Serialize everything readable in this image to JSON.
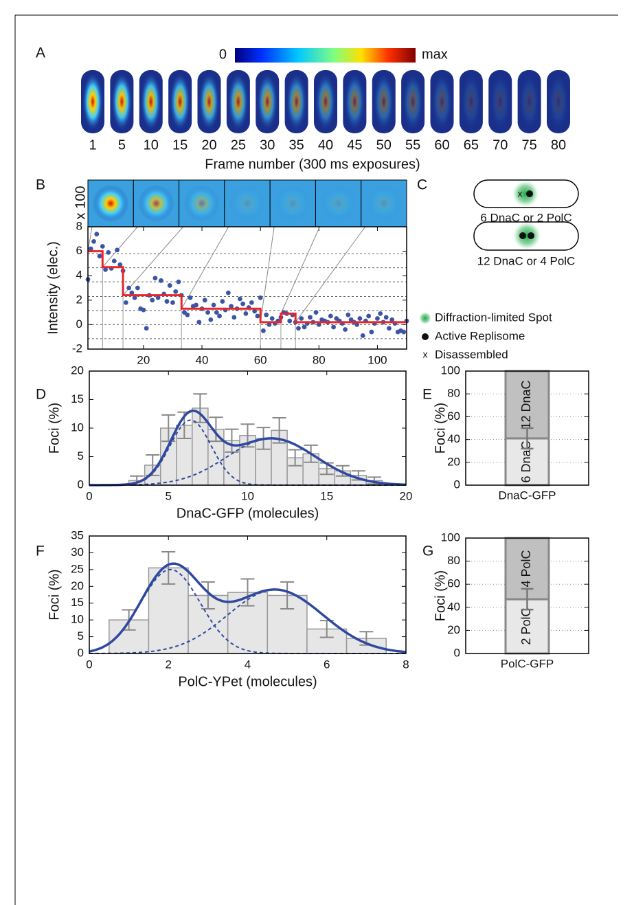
{
  "panels": [
    "A",
    "B",
    "C",
    "D",
    "E",
    "F",
    "G"
  ],
  "diagram": {
    "cells": [
      "6 DnaC or 2 PolC",
      "12 DnaC or 4 PolC"
    ],
    "marker_x": "x",
    "legend": [
      "Diffraction-limited Spot",
      "Active Replisome",
      "Disassembled"
    ]
  },
  "chart_data": [
    {
      "type": "image-strip",
      "colorbar_labels": [
        "0",
        "max"
      ],
      "x": [
        1,
        5,
        10,
        15,
        20,
        25,
        30,
        35,
        40,
        45,
        50,
        55,
        60,
        65,
        70,
        75,
        80
      ],
      "xlabel": "Frame number (300 ms exposures)"
    },
    {
      "type": "scatter",
      "xlabel": "Frame number (300 ms exposures)",
      "ylabel": "Intensity (elec.)",
      "y_multiplier": "x 100",
      "color": "#3b55a5",
      "x": [
        1,
        2,
        3,
        4,
        5,
        6,
        7,
        8,
        9,
        10,
        11,
        12,
        13,
        14,
        15,
        16,
        17,
        18,
        19,
        20,
        21,
        22,
        23,
        24,
        25,
        26,
        27,
        28,
        29,
        30,
        31,
        32,
        33,
        34,
        35,
        36,
        37,
        38,
        39,
        40,
        41,
        42,
        43,
        44,
        45,
        46,
        47,
        48,
        49,
        50,
        51,
        52,
        53,
        54,
        55,
        56,
        57,
        58,
        59,
        60,
        61,
        62,
        63,
        64,
        65,
        66,
        67,
        68,
        69,
        70,
        71,
        72,
        73,
        74,
        75,
        76,
        77,
        78,
        79,
        80,
        81,
        82,
        83,
        84,
        85,
        86,
        87,
        88,
        89,
        90,
        91,
        92,
        93,
        94,
        95,
        96,
        97,
        98,
        99,
        100,
        101,
        102,
        103,
        104,
        105,
        106,
        107,
        108,
        109,
        110
      ],
      "values": [
        3.7,
        6.2,
        6.8,
        7.4,
        5.6,
        6.4,
        4.5,
        5.9,
        4.6,
        5.2,
        6.1,
        4.9,
        4.4,
        1.8,
        3.0,
        2.6,
        2.2,
        3.0,
        1.3,
        1.2,
        -0.3,
        2.4,
        2.0,
        3.8,
        2.2,
        3.6,
        2.5,
        1.9,
        3.2,
        1.8,
        2.7,
        3.5,
        2.4,
        1.0,
        0.8,
        2.2,
        1.5,
        1.6,
        0.2,
        1.3,
        2.0,
        1.0,
        0.4,
        1.6,
        1.0,
        0.7,
        1.9,
        1.2,
        2.6,
        1.5,
        0.6,
        1.3,
        2.1,
        1.7,
        0.9,
        1.4,
        1.8,
        1.1,
        0.7,
        2.2,
        -0.5,
        0.8,
        0.0,
        0.5,
        0.1,
        0.3,
        0.6,
        1.0,
        0.9,
        0.3,
        0.8,
        0.2,
        -0.3,
        0.5,
        -0.2,
        0.1,
        0.6,
        0.2,
        1.0,
        0.0,
        0.4,
        0.3,
        0.2,
        0.7,
        -0.2,
        0.5,
        0.3,
        0.1,
        -0.4,
        0.8,
        0.4,
        0.2,
        0.0,
        0.5,
        -0.9,
        0.3,
        0.7,
        -0.6,
        0.1,
        0.5,
        0.9,
        0.2,
        0.6,
        -0.3,
        0.4,
        0.1,
        -0.6,
        -0.5,
        -0.6,
        0.3
      ],
      "step": {
        "color": "#e8262a",
        "x": [
          1,
          6,
          6,
          13,
          13,
          33,
          33,
          60,
          60,
          67,
          67,
          72,
          72,
          110
        ],
        "y": [
          6.0,
          6.0,
          4.7,
          4.7,
          2.4,
          2.4,
          1.3,
          1.3,
          0.2,
          0.2,
          0.9,
          0.9,
          0.2,
          0.2
        ]
      },
      "reference_lines": [
        5.8,
        4.65,
        3.5,
        2.3,
        1.15,
        0,
        -1.15
      ],
      "xlim": [
        1,
        110
      ],
      "xticks": [
        20,
        40,
        60,
        80,
        100
      ],
      "ylim": [
        -2,
        8
      ],
      "yticks": [
        -2,
        0,
        2,
        4,
        6,
        8
      ]
    },
    {
      "type": "histogram",
      "xlabel": "DnaC-GFP (molecules)",
      "ylabel": "Foci (%)",
      "color": "#e6e6e6",
      "bins": [
        2.5,
        3.5,
        4.5,
        5.5,
        6.5,
        7.5,
        8.5,
        9.5,
        10.5,
        11.5,
        12.5,
        13.5,
        14.5,
        15.5,
        16.5,
        17.5,
        18.5
      ],
      "values": [
        0.8,
        3.5,
        10.0,
        10.5,
        13.5,
        9.8,
        7.8,
        8.7,
        8.2,
        9.6,
        4.8,
        5.5,
        2.9,
        2.5,
        1.7,
        0.8
      ],
      "errors": [
        0.8,
        1.8,
        2.3,
        2.3,
        2.5,
        2.1,
        2.0,
        2.0,
        1.9,
        2.2,
        1.4,
        1.5,
        1.0,
        0.9,
        0.8,
        0.6
      ],
      "fit": {
        "color": "#2f48a0",
        "components": [
          {
            "amplitude": 11.4,
            "mean": 6.4,
            "sd": 1.3
          },
          {
            "amplitude": 8.2,
            "mean": 11.5,
            "sd": 2.8
          }
        ]
      },
      "xlim": [
        0,
        20
      ],
      "xticks": [
        0,
        5,
        10,
        15,
        20
      ],
      "ylim": [
        0,
        20
      ],
      "yticks": [
        0,
        5,
        10,
        15,
        20
      ]
    },
    {
      "type": "stacked-bar",
      "ylabel": "Foci (%)",
      "categories": [
        "DnaC-GFP"
      ],
      "grid": true,
      "series": [
        {
          "name": "6 DnaC",
          "color": "#e8e8e8",
          "values": [
            41
          ],
          "error": [
            9
          ]
        },
        {
          "name": "12 DnaC",
          "color": "#c0c0c0",
          "values": [
            59
          ]
        }
      ],
      "ylim": [
        0,
        100
      ],
      "yticks": [
        0,
        20,
        40,
        60,
        80,
        100
      ]
    },
    {
      "type": "histogram",
      "xlabel": "PolC-YPet (molecules)",
      "ylabel": "Foci (%)",
      "color": "#e6e6e6",
      "bins": [
        0.5,
        1.5,
        2.5,
        3.5,
        4.5,
        5.5,
        6.5,
        7.5
      ],
      "values": [
        10.0,
        25.5,
        17.3,
        18.2,
        17.3,
        7.3,
        4.5
      ],
      "errors": [
        3.0,
        4.8,
        4.0,
        4.0,
        4.0,
        2.5,
        2.0
      ],
      "fit": {
        "color": "#2f48a0",
        "components": [
          {
            "amplitude": 25,
            "mean": 2.05,
            "sd": 0.75
          },
          {
            "amplitude": 19,
            "mean": 4.7,
            "sd": 1.2
          }
        ]
      },
      "xlim": [
        0,
        8
      ],
      "xticks": [
        0,
        2,
        4,
        6,
        8
      ],
      "ylim": [
        0,
        35
      ],
      "yticks": [
        0,
        5,
        10,
        15,
        20,
        25,
        30,
        35
      ]
    },
    {
      "type": "stacked-bar",
      "ylabel": "Foci (%)",
      "categories": [
        "PolC-GFP"
      ],
      "grid": true,
      "series": [
        {
          "name": "2 PolC",
          "color": "#e8e8e8",
          "values": [
            47
          ],
          "error": [
            9
          ]
        },
        {
          "name": "4 PolC",
          "color": "#c0c0c0",
          "values": [
            53
          ]
        }
      ],
      "ylim": [
        0,
        100
      ],
      "yticks": [
        0,
        20,
        40,
        60,
        80,
        100
      ]
    }
  ]
}
